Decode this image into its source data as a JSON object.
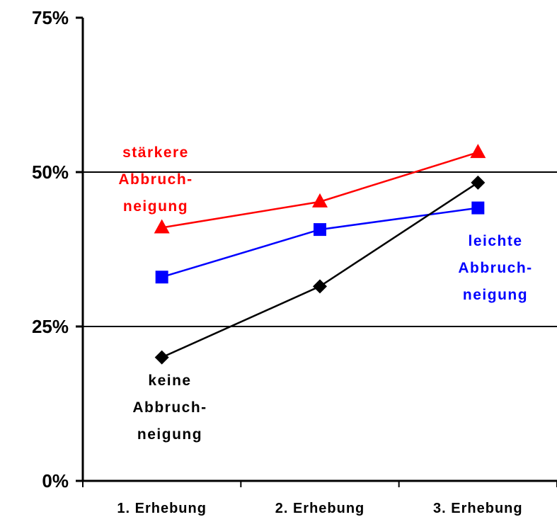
{
  "chart_data": {
    "type": "line",
    "categories": [
      "1. Erhebung",
      "2. Erhebung",
      "3. Erhebung"
    ],
    "y_ticks": [
      "0%",
      "25%",
      "50%",
      "75%"
    ],
    "y_tick_values": [
      0,
      25,
      50,
      75
    ],
    "ylim": [
      0,
      75
    ],
    "gridlines_at": [
      25,
      50
    ],
    "series": [
      {
        "name_lines": [
          "stärkere",
          "Abbruch-",
          "neigung"
        ],
        "color": "#ff0000",
        "marker": "triangle",
        "values": [
          41,
          45.2,
          53.2
        ]
      },
      {
        "name_lines": [
          "leichte",
          "Abbruch-",
          "neigung"
        ],
        "color": "#0000ff",
        "marker": "square",
        "values": [
          33,
          40.7,
          44.2
        ]
      },
      {
        "name_lines": [
          "keine",
          "Abbruch-",
          "neigung"
        ],
        "color": "#000000",
        "marker": "diamond",
        "values": [
          20,
          31.5,
          48.3
        ]
      }
    ]
  }
}
